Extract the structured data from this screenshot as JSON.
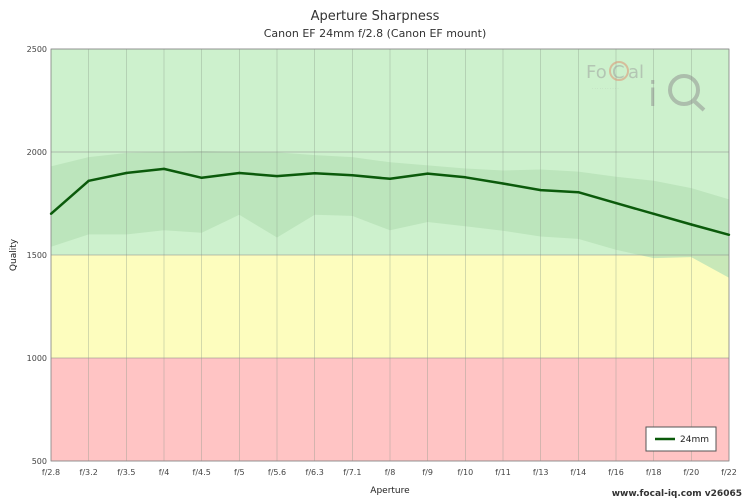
{
  "chart_data": {
    "type": "line",
    "title": "Aperture Sharpness",
    "subtitle": "Canon EF 24mm f/2.8 (Canon EF mount)",
    "xlabel": "Aperture",
    "ylabel": "Quality",
    "categories": [
      "f/2.8",
      "f/3.2",
      "f/3.5",
      "f/4",
      "f/4.5",
      "f/5",
      "f/5.6",
      "f/6.3",
      "f/7.1",
      "f/8",
      "f/9",
      "f/10",
      "f/11",
      "f/13",
      "f/14",
      "f/16",
      "f/18",
      "f/20",
      "f/22"
    ],
    "ylim": [
      500,
      2500
    ],
    "yticks": [
      500,
      1000,
      1500,
      2000,
      2500
    ],
    "grid": true,
    "legend_position": "bottom-right",
    "zones": [
      {
        "from": 500,
        "to": 1000,
        "color": "#ffc4c4"
      },
      {
        "from": 1000,
        "to": 1500,
        "color": "#fdfdbe"
      },
      {
        "from": 1500,
        "to": 2500,
        "color": "#cdf1cd"
      }
    ],
    "series": [
      {
        "name": "24mm",
        "color": "#0b5a0b",
        "values": [
          1700,
          1860,
          1898,
          1918,
          1875,
          1898,
          1883,
          1897,
          1887,
          1870,
          1895,
          1877,
          1847,
          1815,
          1805,
          1752,
          1700,
          1648,
          1598
        ]
      }
    ],
    "bands": [
      {
        "color": "#b6e0b6",
        "upper": [
          1930,
          1975,
          1995,
          2000,
          2005,
          2000,
          1998,
          1985,
          1975,
          1950,
          1935,
          1920,
          1910,
          1915,
          1905,
          1880,
          1860,
          1825,
          1770
        ],
        "lower": [
          1540,
          1600,
          1600,
          1620,
          1608,
          1695,
          1585,
          1695,
          1690,
          1620,
          1660,
          1640,
          1618,
          1590,
          1578,
          1525,
          1485,
          1490,
          1390
        ]
      }
    ]
  },
  "logo": {
    "text": "FoCal iQ"
  },
  "footer": {
    "text": "www.focal-iq.com  v26065"
  }
}
